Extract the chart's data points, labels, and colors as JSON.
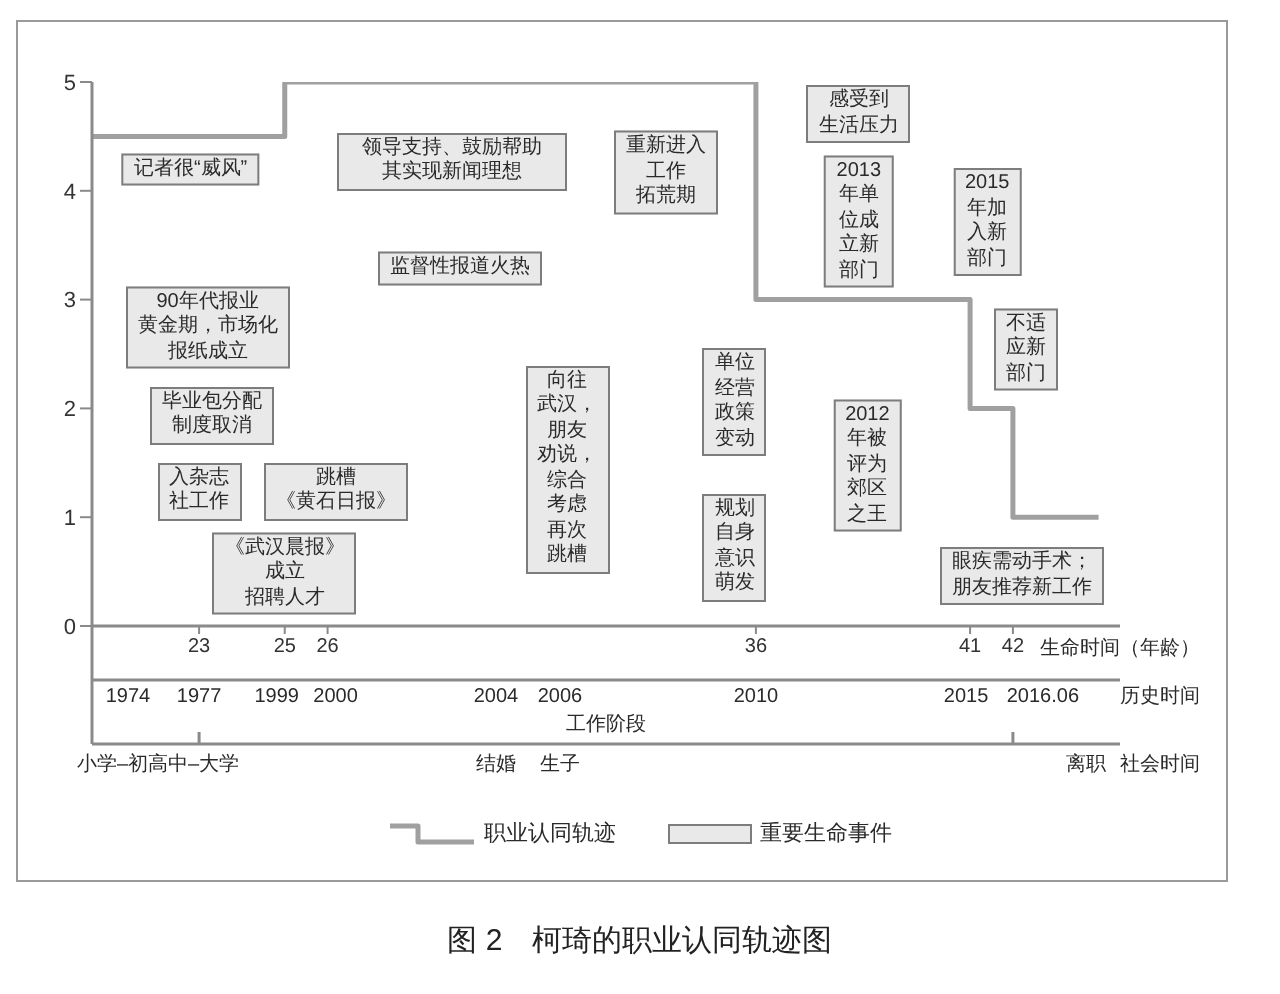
{
  "chart_data": {
    "type": "step",
    "title": "图 2　柯琦的职业认同轨迹图",
    "xlabel": "生命时间（年龄）",
    "xlim": [
      20.5,
      44.5
    ],
    "xticks": [
      23,
      25,
      26,
      36,
      41,
      42
    ],
    "ylim": [
      0,
      5
    ],
    "yticks": [
      0,
      1,
      2,
      3,
      4,
      5
    ],
    "legend": "bottom",
    "series": [
      {
        "name": "职业认同轨迹",
        "color": "#a0a0a0",
        "x": [
          20.5,
          25,
          36,
          41,
          42,
          44
        ],
        "values": [
          4.5,
          5,
          3,
          2,
          1,
          1
        ]
      }
    ],
    "annotations": [
      "记者很“威风”",
      "领导支持、鼓励帮助其实现新闻理想",
      "重新进入工作拓荒期",
      "监督性报道火热",
      "90年代报业黄金期，市场化报纸成立",
      "毕业包分配制度取消",
      "入杂志社工作",
      "跳槽《黄石日报》",
      "《武汉晨报》成立招聘人才",
      "向往武汉，朋友劝说，综合考虑再次跳槽",
      "感受到生活压力",
      "2013年单位成立新部门",
      "2015年加入新部门",
      "不适应新部门",
      "单位经营政策变动",
      "2012年被评为郊区之王",
      "规划自身意识萌发",
      "眼疾需动手术；朋友推荐新工作",
      "重要生命事件",
      "1974",
      "1977",
      "1999",
      "2000",
      "2004",
      "2006",
      "2010",
      "2015",
      "2016.06",
      "历史时间",
      "小学–初高中–大学",
      "结婚",
      "生子",
      "离职",
      "社会时间",
      "工作阶段"
    ]
  }
}
